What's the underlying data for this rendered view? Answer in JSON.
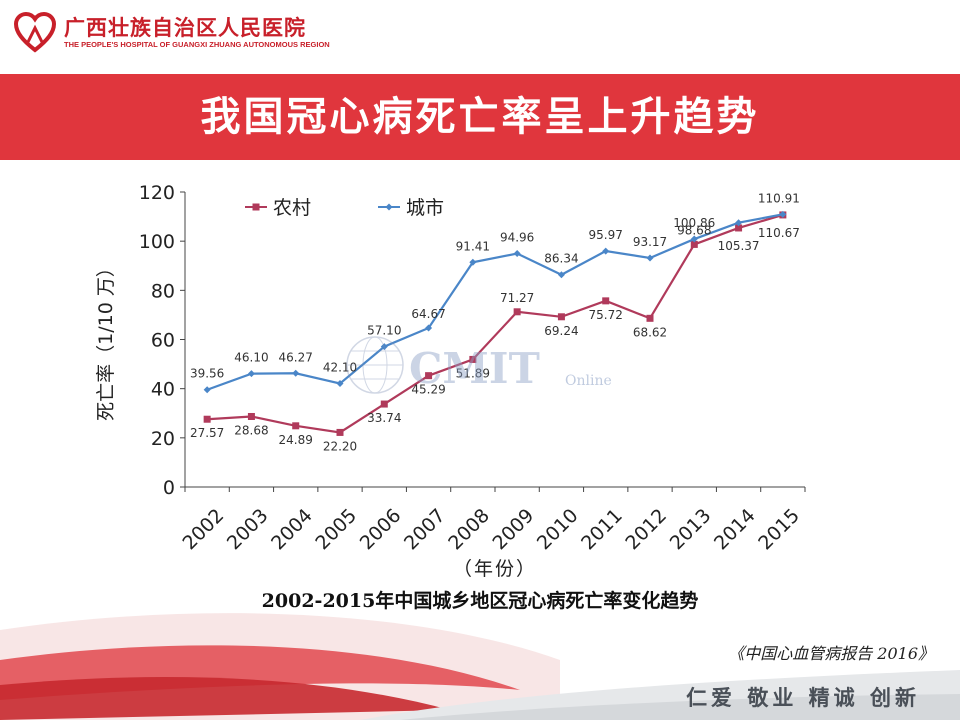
{
  "header": {
    "hospital_cn": "广西壮族自治区人民医院",
    "hospital_en": "THE PEOPLE'S HOSPITAL OF GUANGXI ZHUANG AUTONOMOUS REGION",
    "logo_icon": "heart-ribbon-icon"
  },
  "title": "我国冠心病死亡率呈上升趋势",
  "watermark": {
    "main": "CMIT",
    "sub": "Online"
  },
  "chart_data": {
    "type": "line",
    "x": [
      "2002",
      "2003",
      "2004",
      "2005",
      "2006",
      "2007",
      "2008",
      "2009",
      "2010",
      "2011",
      "2012",
      "2013",
      "2014",
      "2015"
    ],
    "ylabel": "死亡率（1/10 万）",
    "xlabel": "（年份）",
    "ylim": [
      0,
      120
    ],
    "yticks": [
      0,
      20,
      40,
      60,
      80,
      100,
      120
    ],
    "legend_position": "top-left",
    "grid": false,
    "series": [
      {
        "name": "农村",
        "color": "#b03a5b",
        "marker": "square",
        "values": [
          27.57,
          28.68,
          24.89,
          22.2,
          33.74,
          45.29,
          51.89,
          71.27,
          69.24,
          75.72,
          68.62,
          98.68,
          105.37,
          110.67
        ]
      },
      {
        "name": "城市",
        "color": "#4a86c8",
        "marker": "diamond",
        "values": [
          39.56,
          46.1,
          46.27,
          42.1,
          57.1,
          64.67,
          91.41,
          94.96,
          86.34,
          95.97,
          93.17,
          100.86,
          107.5,
          110.91
        ]
      }
    ],
    "data_labels": {
      "农村": [
        "27.57",
        "28.68",
        "24.89",
        "22.20",
        "33.74",
        "45.29",
        "51.89",
        "71.27",
        "69.24",
        "75.72",
        "68.62",
        "98.68",
        "105.37",
        "110.67"
      ],
      "城市": [
        "39.56",
        "46.10",
        "46.27",
        "42.10",
        "57.10",
        "64.67",
        "91.41",
        "94.96",
        "86.34",
        "95.97",
        "93.17",
        "100.86",
        "",
        "110.91"
      ]
    }
  },
  "caption": "2002-2015年中国城乡地区冠心病死亡率变化趋势",
  "source": "《中国心血管病报告 2016》",
  "slogan": "仁爱  敬业  精诚  创新"
}
